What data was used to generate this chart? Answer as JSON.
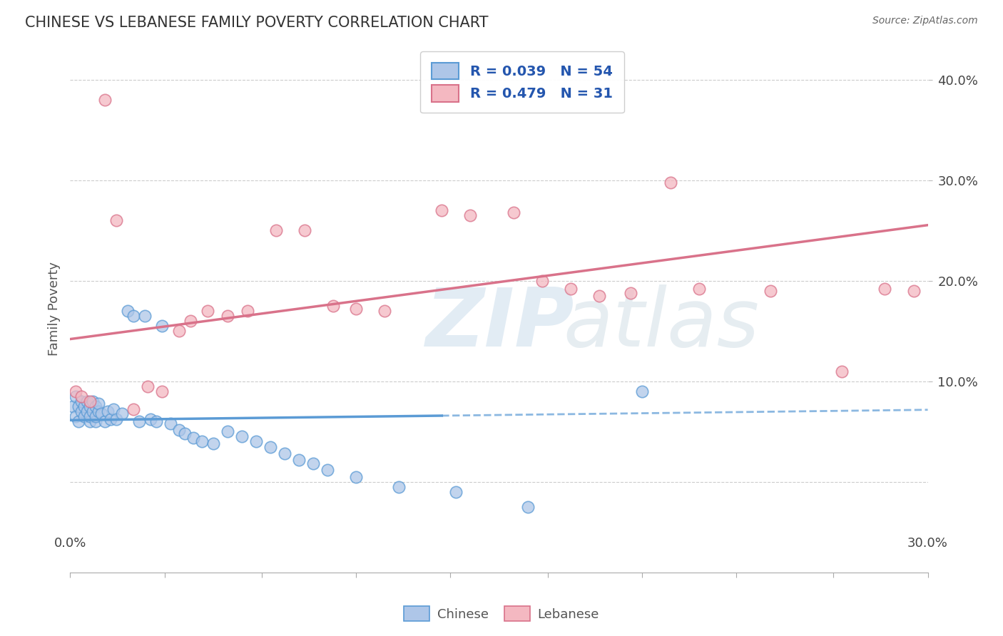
{
  "title": "CHINESE VS LEBANESE FAMILY POVERTY CORRELATION CHART",
  "source": "Source: ZipAtlas.com",
  "ylabel": "Family Poverty",
  "xlim": [
    0.0,
    0.3
  ],
  "ylim": [
    -0.09,
    0.435
  ],
  "yticks": [
    0.1,
    0.2,
    0.3,
    0.4
  ],
  "ytick_labels": [
    "10.0%",
    "20.0%",
    "30.0%",
    "40.0%"
  ],
  "xtick_positions": [
    0.0,
    0.033,
    0.067,
    0.1,
    0.133,
    0.167,
    0.2,
    0.233,
    0.267,
    0.3
  ],
  "chinese_color": "#aec6e8",
  "chinese_edge": "#5b9bd5",
  "lebanese_color": "#f4b8c1",
  "lebanese_edge": "#d9728a",
  "chinese_R": 0.039,
  "chinese_N": 54,
  "lebanese_R": 0.479,
  "lebanese_N": 31,
  "legend_text_color": "#2456ae",
  "background": "#ffffff",
  "grid_color": "#cccccc",
  "title_color": "#333333",
  "watermark_color": "#c5daea",
  "chinese_line_solid_end": 0.13,
  "chinese_x": [
    0.001,
    0.002,
    0.002,
    0.003,
    0.003,
    0.004,
    0.004,
    0.005,
    0.005,
    0.006,
    0.006,
    0.007,
    0.007,
    0.007,
    0.008,
    0.008,
    0.009,
    0.009,
    0.009,
    0.01,
    0.01,
    0.011,
    0.012,
    0.013,
    0.014,
    0.015,
    0.016,
    0.018,
    0.02,
    0.022,
    0.024,
    0.026,
    0.028,
    0.03,
    0.032,
    0.035,
    0.038,
    0.04,
    0.043,
    0.046,
    0.05,
    0.055,
    0.06,
    0.065,
    0.07,
    0.075,
    0.08,
    0.085,
    0.09,
    0.1,
    0.115,
    0.135,
    0.16,
    0.2
  ],
  "chinese_y": [
    0.075,
    0.085,
    0.065,
    0.06,
    0.075,
    0.07,
    0.08,
    0.065,
    0.075,
    0.07,
    0.08,
    0.06,
    0.065,
    0.075,
    0.07,
    0.08,
    0.06,
    0.065,
    0.075,
    0.07,
    0.078,
    0.068,
    0.06,
    0.07,
    0.062,
    0.072,
    0.062,
    0.068,
    0.17,
    0.165,
    0.06,
    0.165,
    0.062,
    0.06,
    0.155,
    0.058,
    0.052,
    0.048,
    0.044,
    0.04,
    0.038,
    0.05,
    0.045,
    0.04,
    0.035,
    0.028,
    0.022,
    0.018,
    0.012,
    0.005,
    -0.005,
    -0.01,
    -0.025,
    0.09
  ],
  "lebanese_x": [
    0.002,
    0.004,
    0.007,
    0.012,
    0.016,
    0.022,
    0.027,
    0.032,
    0.038,
    0.042,
    0.048,
    0.055,
    0.062,
    0.072,
    0.082,
    0.092,
    0.1,
    0.11,
    0.13,
    0.14,
    0.155,
    0.165,
    0.175,
    0.185,
    0.196,
    0.21,
    0.22,
    0.245,
    0.27,
    0.285,
    0.295
  ],
  "lebanese_y": [
    0.09,
    0.085,
    0.08,
    0.38,
    0.26,
    0.072,
    0.095,
    0.09,
    0.15,
    0.16,
    0.17,
    0.165,
    0.17,
    0.25,
    0.25,
    0.175,
    0.172,
    0.17,
    0.27,
    0.265,
    0.268,
    0.2,
    0.192,
    0.185,
    0.188,
    0.298,
    0.192,
    0.19,
    0.11,
    0.192,
    0.19
  ]
}
